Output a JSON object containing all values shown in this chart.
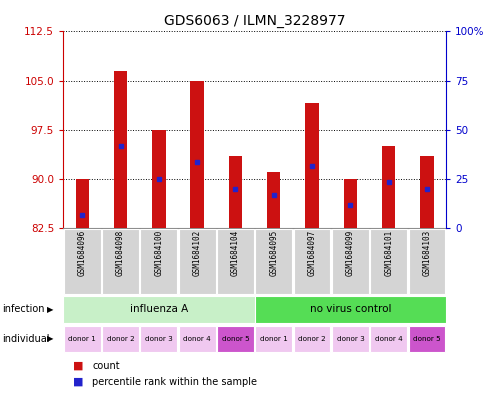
{
  "title": "GDS6063 / ILMN_3228977",
  "samples": [
    "GSM1684096",
    "GSM1684098",
    "GSM1684100",
    "GSM1684102",
    "GSM1684104",
    "GSM1684095",
    "GSM1684097",
    "GSM1684099",
    "GSM1684101",
    "GSM1684103"
  ],
  "bar_tops": [
    90.0,
    106.5,
    97.5,
    105.0,
    93.5,
    91.0,
    101.5,
    90.0,
    95.0,
    93.5
  ],
  "bar_bottom": 82.5,
  "blue_values": [
    84.5,
    95.0,
    90.0,
    92.5,
    88.5,
    87.5,
    92.0,
    86.0,
    89.5,
    88.5
  ],
  "ylim_left": [
    82.5,
    112.5
  ],
  "yticks_left": [
    82.5,
    90.0,
    97.5,
    105.0,
    112.5
  ],
  "ylim_right": [
    0,
    100
  ],
  "yticks_right": [
    0,
    25,
    50,
    75,
    100
  ],
  "yticklabels_right": [
    "0",
    "25",
    "50",
    "75",
    "100%"
  ],
  "infection_groups": [
    {
      "label": "influenza A",
      "start": 0,
      "end": 5,
      "color": "#c8f0c8"
    },
    {
      "label": "no virus control",
      "start": 5,
      "end": 10,
      "color": "#55dd55"
    }
  ],
  "individual_labels": [
    "donor 1",
    "donor 2",
    "donor 3",
    "donor 4",
    "donor 5",
    "donor 1",
    "donor 2",
    "donor 3",
    "donor 4",
    "donor 5"
  ],
  "ind_colors": [
    "#f0c8f0",
    "#f0c8f0",
    "#f0c8f0",
    "#f0c8f0",
    "#cc55cc",
    "#f0c8f0",
    "#f0c8f0",
    "#f0c8f0",
    "#f0c8f0",
    "#cc55cc"
  ],
  "bar_color": "#cc1111",
  "blue_color": "#2222cc",
  "left_axis_color": "#cc0000",
  "right_axis_color": "#0000cc",
  "bg_color": "#ffffff"
}
